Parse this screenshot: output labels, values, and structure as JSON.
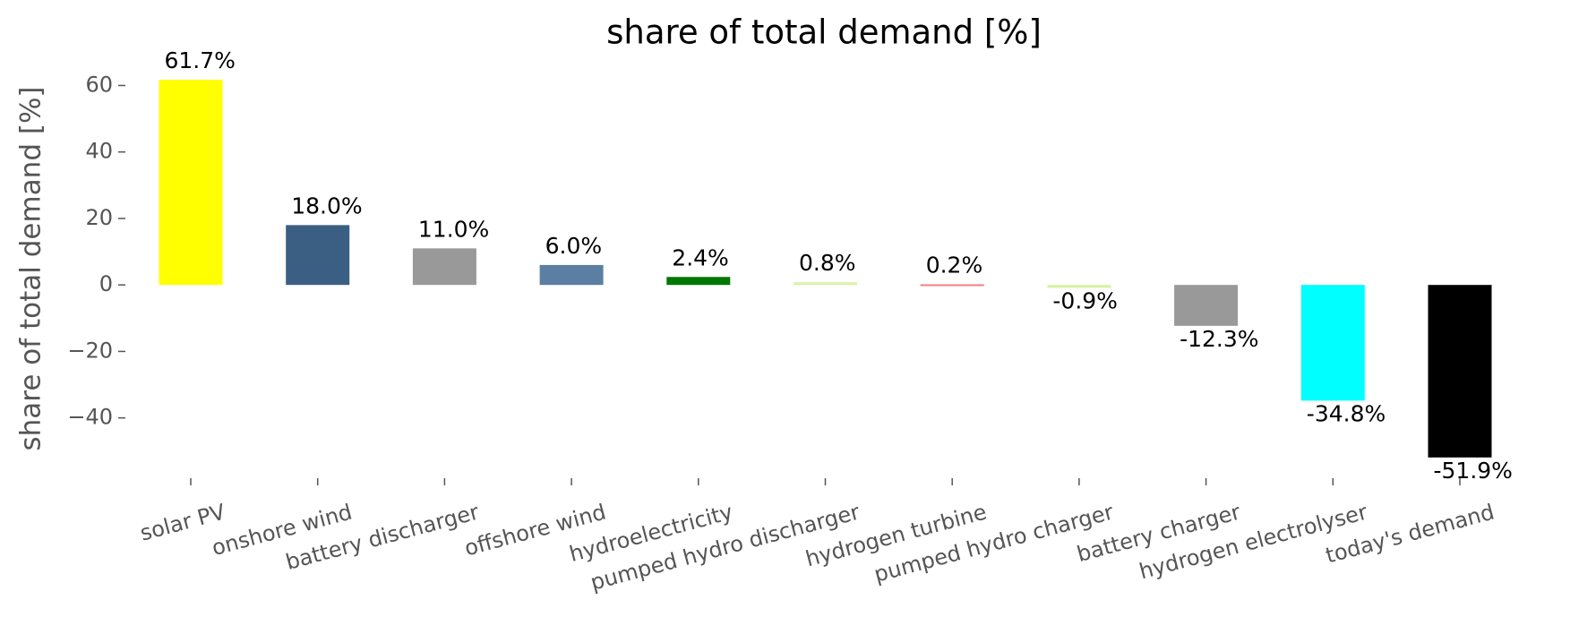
{
  "chart_data": {
    "type": "bar",
    "title": "share of total demand [%]",
    "ylabel": "share of total demand [%]",
    "categories": [
      "solar PV",
      "onshore wind",
      "battery discharger",
      "offshore wind",
      "hydroelectricity",
      "pumped hydro discharger",
      "hydrogen turbine",
      "pumped hydro charger",
      "battery charger",
      "hydrogen electrolyser",
      "today's demand"
    ],
    "values": [
      61.7,
      18.0,
      11.0,
      6.0,
      2.4,
      0.8,
      0.2,
      -0.9,
      -12.3,
      -34.8,
      -51.9
    ],
    "value_labels": [
      "61.7%",
      "18.0%",
      "11.0%",
      "6.0%",
      "2.4%",
      "0.8%",
      "0.2%",
      "-0.9%",
      "-12.3%",
      "-34.8%",
      "-51.9%"
    ],
    "colors": [
      "#ffff00",
      "#3b5f82",
      "#999999",
      "#5b7fa3",
      "#007700",
      "#d9f2a6",
      "#f08080",
      "#d9f2a6",
      "#999999",
      "#00ffff",
      "#000000"
    ],
    "ylim": [
      -57.6,
      67.4
    ],
    "yticks": [
      {
        "value": -40,
        "label": "−40"
      },
      {
        "value": -20,
        "label": "−20"
      },
      0,
      20,
      40,
      60
    ],
    "grid": false
  }
}
